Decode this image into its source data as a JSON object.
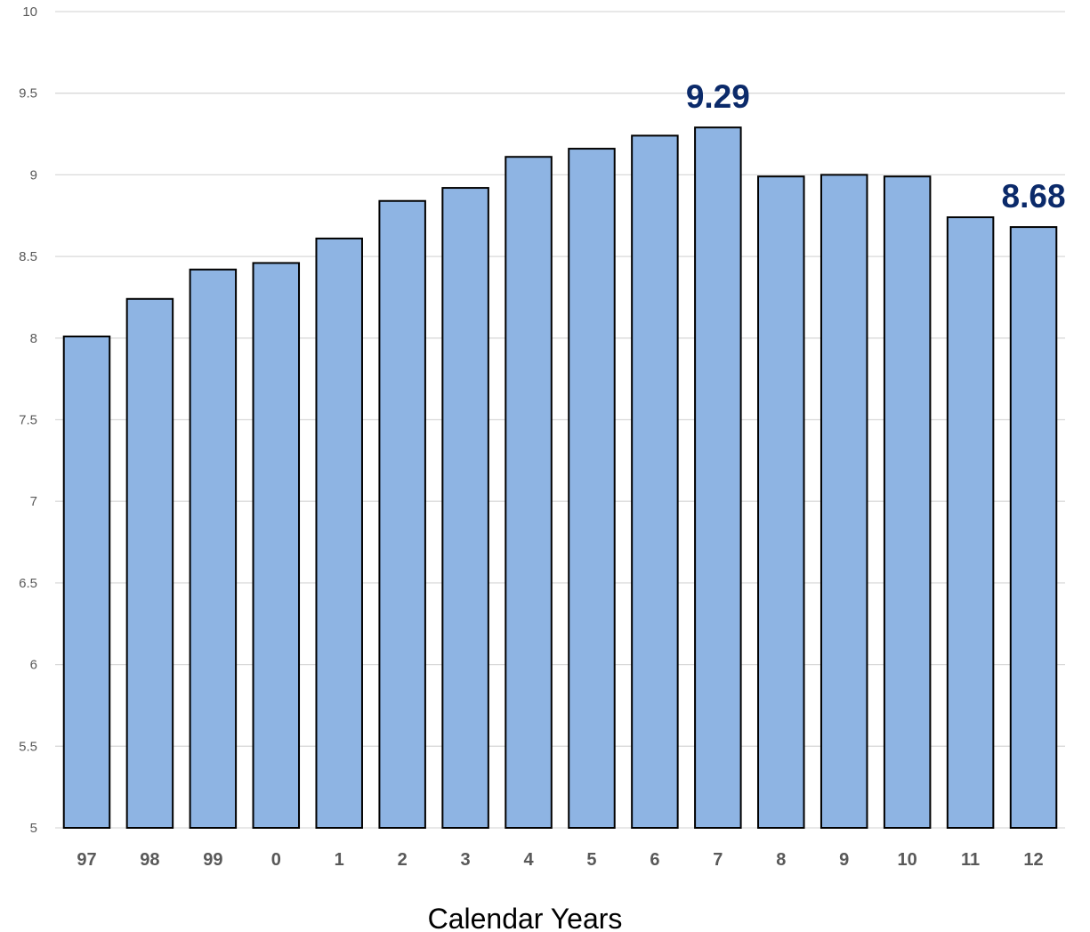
{
  "chart_data": {
    "type": "bar",
    "title": "",
    "xlabel": "Calendar Years",
    "ylabel": "",
    "ylim": [
      5,
      10
    ],
    "yticks": [
      5,
      5.5,
      6,
      6.5,
      7,
      7.5,
      8,
      8.5,
      9,
      9.5,
      10
    ],
    "grid": true,
    "categories": [
      "97",
      "98",
      "99",
      "0",
      "1",
      "2",
      "3",
      "4",
      "5",
      "6",
      "7",
      "8",
      "9",
      "10",
      "11",
      "12"
    ],
    "values": [
      8.01,
      8.24,
      8.42,
      8.46,
      8.61,
      8.84,
      8.92,
      9.11,
      9.16,
      9.24,
      9.29,
      8.99,
      9.0,
      8.99,
      8.74,
      8.68
    ],
    "data_labels": [
      {
        "category": "7",
        "text": "9.29"
      },
      {
        "category": "12",
        "text": "8.68"
      }
    ],
    "colors": {
      "bar_fill": "#8EB4E3",
      "bar_stroke": "#000000",
      "grid": "#D9D9D9",
      "data_label": "#0B2A6A"
    }
  }
}
